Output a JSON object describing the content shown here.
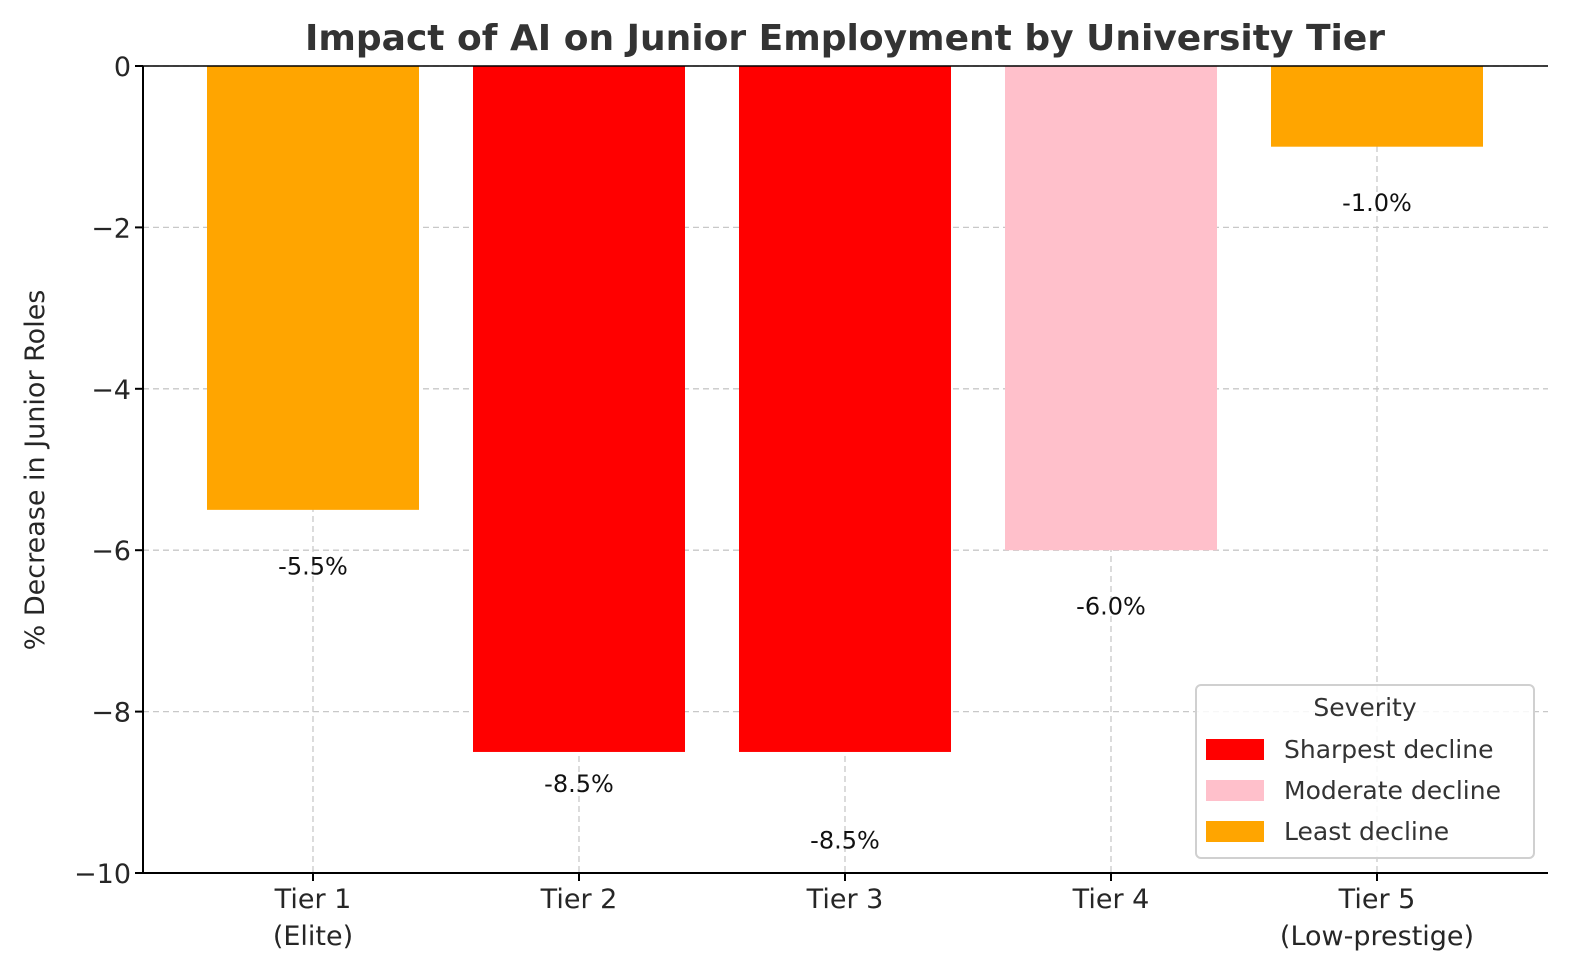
{
  "chart_data": {
    "type": "bar",
    "title": "Impact of AI on Junior Employment by University Tier",
    "xlabel": "",
    "ylabel": "% Decrease in Junior Roles",
    "ylim": [
      -10,
      0
    ],
    "yticks": [
      0,
      -2,
      -4,
      -6,
      -8,
      -10
    ],
    "ytick_labels": [
      "0",
      "−2",
      "−4",
      "−6",
      "−8",
      "−10"
    ],
    "grid": true,
    "categories": [
      [
        "Tier 1",
        "(Elite)"
      ],
      [
        "Tier 2"
      ],
      [
        "Tier 3"
      ],
      [
        "Tier 4"
      ],
      [
        "Tier 5",
        "(Low-prestige)"
      ]
    ],
    "values": [
      -5.5,
      -8.5,
      -8.5,
      -6.0,
      -1.0
    ],
    "severity": [
      "Least decline",
      "Sharpest decline",
      "Sharpest decline",
      "Moderate decline",
      "Least decline"
    ],
    "data_labels": [
      "-5.5%",
      "-8.5%",
      "-8.5%",
      "-6.0%",
      "-1.0%"
    ],
    "data_label_y": [
      -6.2,
      -8.9,
      -9.6,
      -6.7,
      -1.7
    ],
    "legend": {
      "title": "Severity",
      "placement": "lower-right",
      "entries": [
        {
          "label": "Sharpest decline",
          "color": "#ff0000"
        },
        {
          "label": "Moderate decline",
          "color": "#ffc0cb"
        },
        {
          "label": "Least decline",
          "color": "#ffa500"
        }
      ]
    }
  }
}
